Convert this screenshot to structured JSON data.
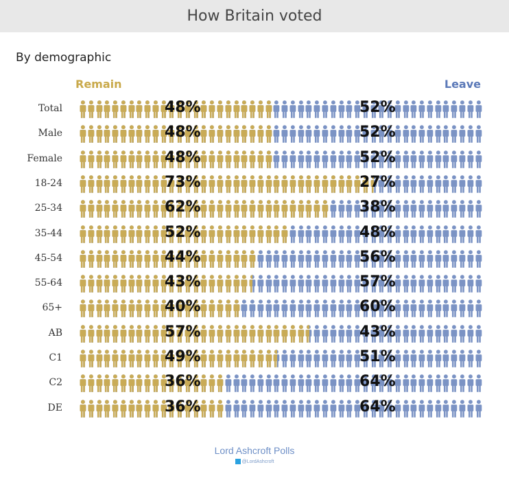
{
  "title": "How Britain voted",
  "subtitle": "By demographic",
  "footer": {
    "source": "Lord Ashcroft Polls",
    "twitter": "@LordAshcroft",
    "twitter_icon": "twitter-icon"
  },
  "colors": {
    "remain": "#c9ab56",
    "leave": "#7b93c4"
  },
  "chart_data": {
    "type": "bar",
    "title": "How Britain voted",
    "subtitle": "By demographic",
    "legend": [
      "Remain",
      "Leave"
    ],
    "categories": [
      "Total",
      "Male",
      "Female",
      "18-24",
      "25-34",
      "35-44",
      "45-54",
      "55-64",
      "65+",
      "AB",
      "C1",
      "C2",
      "DE"
    ],
    "series": [
      {
        "name": "Remain",
        "values": [
          48,
          48,
          48,
          73,
          62,
          52,
          44,
          43,
          40,
          57,
          49,
          36,
          36
        ]
      },
      {
        "name": "Leave",
        "values": [
          52,
          52,
          52,
          27,
          38,
          48,
          56,
          57,
          60,
          43,
          51,
          64,
          64
        ]
      }
    ],
    "labels": {
      "remain": [
        "48%",
        "48%",
        "48%",
        "73%",
        "62%",
        "52%",
        "44%",
        "43%",
        "40%",
        "57%",
        "49%",
        "36%",
        "36%"
      ],
      "leave": [
        "52%",
        "52%",
        "52%",
        "27%",
        "38%",
        "48%",
        "56%",
        "57%",
        "60%",
        "43%",
        "51%",
        "64%",
        "64%"
      ]
    },
    "unit": "%"
  }
}
